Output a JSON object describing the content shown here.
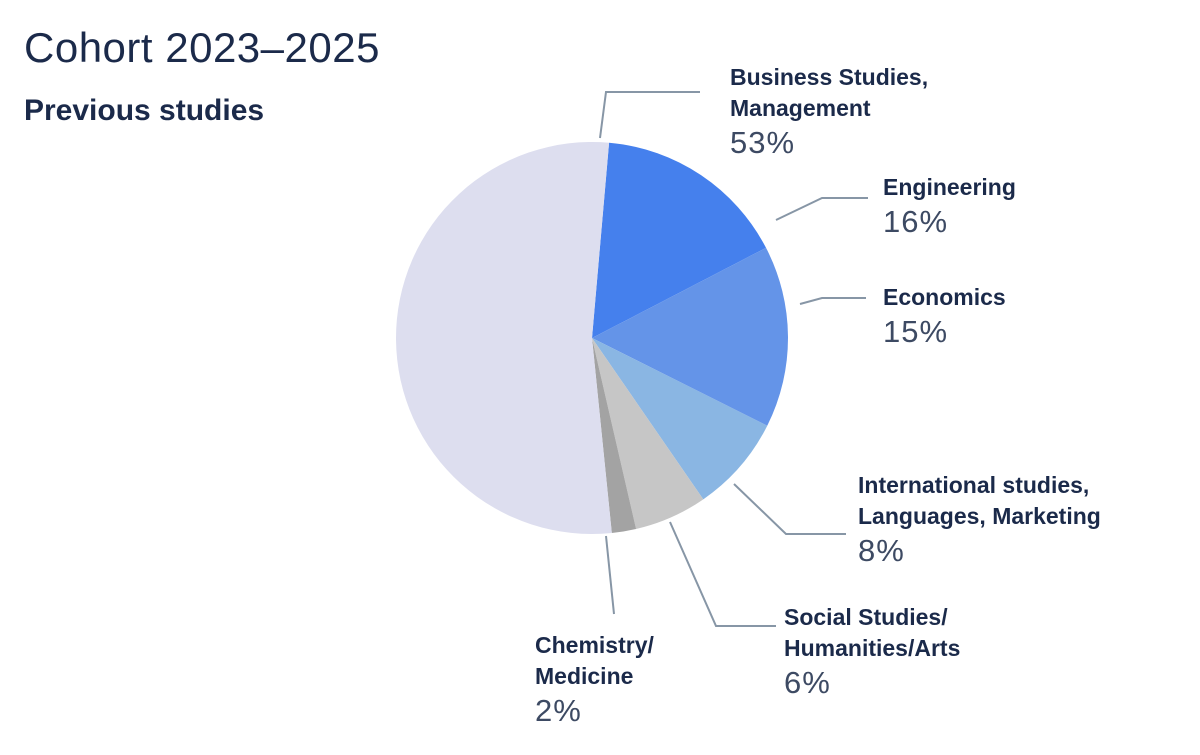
{
  "header": {
    "title": "Cohort 2023–2025",
    "subtitle": "Previous studies"
  },
  "chart_data": {
    "type": "pie",
    "title": "Cohort 2023–2025",
    "subtitle": "Previous studies",
    "slices": [
      {
        "key": "engineering",
        "label_lines": [
          "Engineering"
        ],
        "value": 16,
        "value_label": "16%",
        "color": "#4580ed"
      },
      {
        "key": "economics",
        "label_lines": [
          "Economics"
        ],
        "value": 15,
        "value_label": "15%",
        "color": "#6494e8"
      },
      {
        "key": "international",
        "label_lines": [
          "International studies,",
          "Languages, Marketing"
        ],
        "value": 8,
        "value_label": "8%",
        "color": "#8ab6e3"
      },
      {
        "key": "social",
        "label_lines": [
          "Social Studies/",
          "Humanities/Arts"
        ],
        "value": 6,
        "value_label": "6%",
        "color": "#c6c6c6"
      },
      {
        "key": "chemistry",
        "label_lines": [
          "Chemistry/",
          "Medicine"
        ],
        "value": 2,
        "value_label": "2%",
        "color": "#a3a3a3"
      },
      {
        "key": "business",
        "label_lines": [
          "Business Studies,",
          "Management"
        ],
        "value": 53,
        "value_label": "53%",
        "color": "#dddeef"
      }
    ],
    "leader_line_color": "#8796a6"
  }
}
